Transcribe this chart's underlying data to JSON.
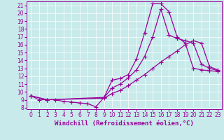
{
  "xlabel": "Windchill (Refroidissement éolien,°C)",
  "background_color": "#c8eaea",
  "line_color": "#990099",
  "grid_color": "#ffffff",
  "xlim": [
    -0.5,
    23.5
  ],
  "ylim": [
    7.8,
    21.5
  ],
  "xticks": [
    0,
    1,
    2,
    3,
    4,
    5,
    6,
    7,
    8,
    9,
    10,
    11,
    12,
    13,
    14,
    15,
    16,
    17,
    18,
    19,
    20,
    21,
    22,
    23
  ],
  "yticks": [
    8,
    9,
    10,
    11,
    12,
    13,
    14,
    15,
    16,
    17,
    18,
    19,
    20,
    21
  ],
  "curve1_x": [
    0,
    1,
    2,
    3,
    4,
    5,
    6,
    7,
    8,
    9,
    10,
    11,
    12,
    13,
    14,
    15,
    16,
    17,
    18,
    19,
    20,
    21,
    22,
    23
  ],
  "curve1_y": [
    9.5,
    9.0,
    9.0,
    9.0,
    8.8,
    8.7,
    8.6,
    8.5,
    8.1,
    9.3,
    11.5,
    11.7,
    12.2,
    14.2,
    17.5,
    21.2,
    21.2,
    20.2,
    17.0,
    16.2,
    13.0,
    12.8,
    12.7,
    12.6
  ],
  "curve2_x": [
    0,
    2,
    9,
    10,
    11,
    12,
    13,
    14,
    15,
    16,
    17,
    18,
    19,
    20,
    21,
    22,
    23
  ],
  "curve2_y": [
    9.5,
    9.0,
    9.3,
    10.5,
    11.0,
    11.8,
    12.8,
    14.5,
    17.0,
    20.5,
    17.2,
    16.8,
    16.5,
    16.2,
    13.5,
    13.0,
    12.7
  ],
  "curve3_x": [
    0,
    2,
    9,
    10,
    11,
    12,
    13,
    14,
    15,
    16,
    17,
    18,
    19,
    20,
    21,
    22,
    23
  ],
  "curve3_y": [
    9.5,
    9.0,
    9.2,
    9.8,
    10.2,
    10.8,
    11.5,
    12.2,
    13.0,
    13.8,
    14.5,
    15.2,
    16.0,
    16.5,
    16.2,
    13.2,
    12.8
  ],
  "marker": "+",
  "markersize": 4,
  "linewidth": 0.9,
  "xlabel_fontsize": 6.5,
  "tick_fontsize": 5.5
}
